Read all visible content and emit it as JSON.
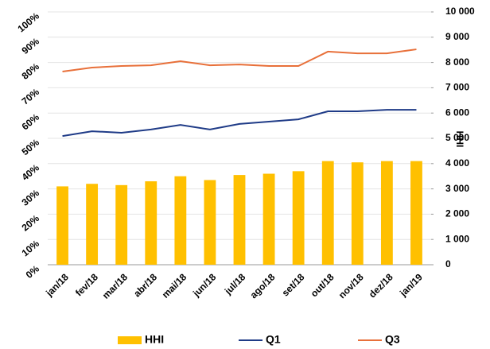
{
  "chart_data": {
    "type": "bar",
    "categories": [
      "jan/18",
      "fev/18",
      "mar/18",
      "abr/18",
      "mai/18",
      "jun/18",
      "jul/18",
      "ago/18",
      "set/18",
      "out/18",
      "nov/18",
      "dez/18",
      "jan/19"
    ],
    "series": [
      {
        "name": "HHI",
        "type": "bar",
        "axis": "y2",
        "color": "#ffc000",
        "values": [
          3100,
          3200,
          3150,
          3300,
          3500,
          3350,
          3550,
          3600,
          3700,
          4100,
          4050,
          4100,
          4100
        ]
      },
      {
        "name": "Q1",
        "type": "line",
        "color": "#1f3b87",
        "values": [
          50.9,
          52.8,
          52.2,
          53.5,
          55.3,
          53.5,
          55.7,
          56.6,
          57.5,
          60.7,
          60.7,
          61.3,
          61.3
        ]
      },
      {
        "name": "Q3",
        "type": "line",
        "color": "#e8703a",
        "values": [
          76.4,
          78.0,
          78.6,
          78.9,
          80.5,
          78.9,
          79.2,
          78.6,
          78.6,
          84.3,
          83.6,
          83.6,
          85.2
        ]
      }
    ],
    "y2_label": "HHI",
    "ylim": [
      0,
      100
    ],
    "yticks": [
      {
        "value": 0,
        "label": "0%"
      },
      {
        "value": 10,
        "label": "10%"
      },
      {
        "value": 20,
        "label": "20%"
      },
      {
        "value": 30,
        "label": "30%"
      },
      {
        "value": 40,
        "label": "40%"
      },
      {
        "value": 50,
        "label": "50%"
      },
      {
        "value": 60,
        "label": "60%"
      },
      {
        "value": 70,
        "label": "70%"
      },
      {
        "value": 80,
        "label": "80%"
      },
      {
        "value": 90,
        "label": "90%"
      },
      {
        "value": 100,
        "label": "100%"
      }
    ],
    "y2lim": [
      0,
      10000
    ],
    "y2ticks": [
      0,
      {
        "value": 1000,
        "label": "1 000"
      },
      {
        "value": 2000,
        "label": "2 000"
      },
      {
        "value": 3000,
        "label": "3 000"
      },
      {
        "value": 4000,
        "label": "4 000"
      },
      {
        "value": 5000,
        "label": "5 000"
      },
      {
        "value": 6000,
        "label": "6 000"
      },
      {
        "value": 7000,
        "label": "7 000"
      },
      {
        "value": 8000,
        "label": "8 000"
      },
      {
        "value": 9000,
        "label": "9 000"
      },
      {
        "value": 10000,
        "label": "10 000"
      }
    ],
    "grid": true,
    "legend": "bottom"
  }
}
